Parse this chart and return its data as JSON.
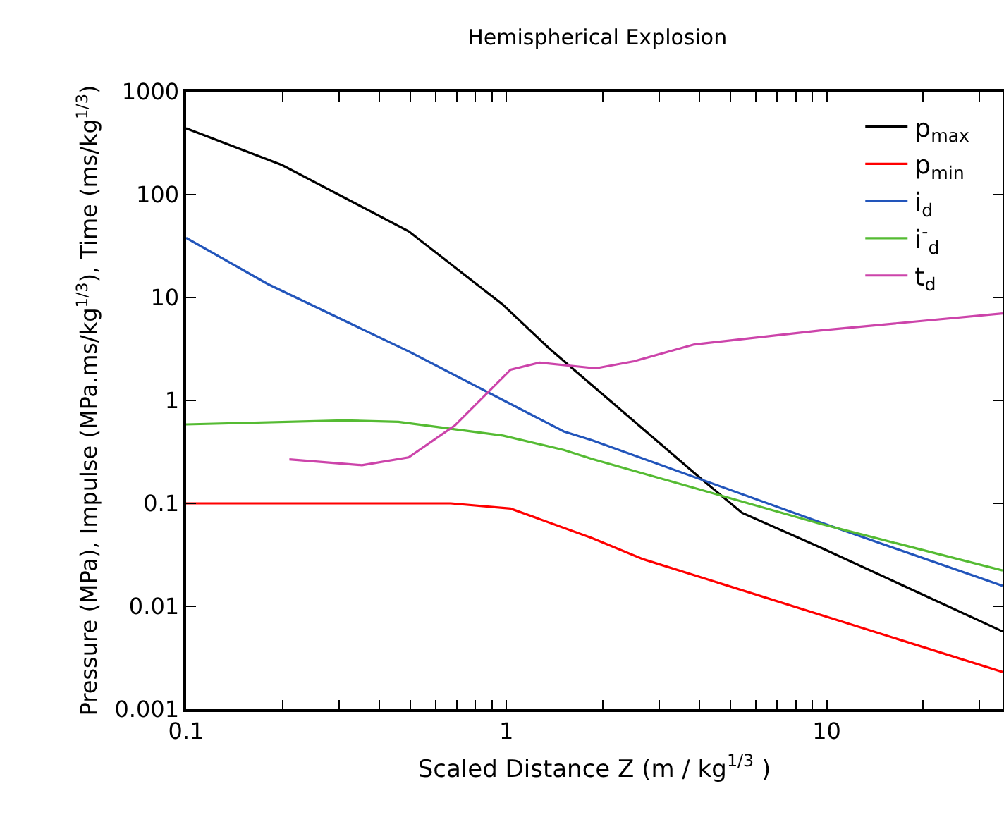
{
  "chart_data": {
    "type": "line",
    "title": "Hemispherical Explosion",
    "xlabel": "Scaled Distance Z (m / kg$^{1/3}$ )",
    "ylabel": "Pressure (MPa), Impulse (MPa.ms/kg$^{1/3}$), Time (ms/kg$^{1/3}$)",
    "log": "xy",
    "grid": false,
    "legend": "top right",
    "marker": "none",
    "line_style": "solid",
    "xlim": [
      0.1,
      35.4
    ],
    "ylim": [
      0.001,
      1000
    ],
    "xticks": [
      0.1,
      {
        "value": 0.2,
        "label": null
      },
      {
        "value": 0.3,
        "label": null
      },
      {
        "value": 0.4,
        "label": null
      },
      {
        "value": 0.5,
        "label": null
      },
      {
        "value": 0.6,
        "label": null
      },
      {
        "value": 0.7,
        "label": null
      },
      {
        "value": 0.8,
        "label": null
      },
      {
        "value": 0.9,
        "label": null
      },
      1,
      {
        "value": 2,
        "label": null
      },
      {
        "value": 3,
        "label": null
      },
      {
        "value": 4,
        "label": null
      },
      {
        "value": 5,
        "label": null
      },
      {
        "value": 6,
        "label": null
      },
      {
        "value": 7,
        "label": null
      },
      {
        "value": 8,
        "label": null
      },
      {
        "value": 9,
        "label": null
      },
      10,
      {
        "value": 20,
        "label": null
      },
      {
        "value": 30,
        "label": null
      }
    ],
    "yticks": [
      0.001,
      0.01,
      0.1,
      1,
      10,
      100,
      1000
    ],
    "series": [
      {
        "name": "p$_{max}$",
        "color": "#000000",
        "x": [
          0.1,
          0.199,
          0.495,
          0.975,
          1.36,
          1.51,
          4.02,
          5.44,
          9.6,
          35.4
        ],
        "values": [
          441,
          194,
          44,
          8.5,
          3.2,
          2.42,
          0.177,
          0.081,
          0.037,
          0.0057
        ]
      },
      {
        "name": "p$_{min}$",
        "color": "#ff0000",
        "x": [
          0.1,
          0.67,
          1.03,
          1.85,
          2.68,
          35.4
        ],
        "values": [
          0.1,
          0.1,
          0.089,
          0.046,
          0.0286,
          0.0023
        ]
      },
      {
        "name": "i$_{d}$",
        "color": "#2255bb",
        "x": [
          0.1,
          0.18,
          0.495,
          1.27,
          1.51,
          1.85,
          9.6,
          35.4
        ],
        "values": [
          38,
          13.5,
          3.0,
          0.66,
          0.5,
          0.41,
          0.065,
          0.0158
        ]
      },
      {
        "name": "i$^{-}$$_{d}$",
        "color": "#55bb33",
        "x": [
          0.1,
          0.31,
          0.46,
          0.975,
          1.51,
          1.85,
          9.6,
          35.4
        ],
        "values": [
          0.585,
          0.64,
          0.62,
          0.455,
          0.33,
          0.27,
          0.063,
          0.0223
        ]
      },
      {
        "name": "t$_{d}$",
        "color": "#cc44aa",
        "x": [
          0.21,
          0.354,
          0.495,
          0.69,
          1.03,
          1.27,
          1.9,
          2.5,
          3.86,
          9.6,
          35.4
        ],
        "values": [
          0.267,
          0.235,
          0.28,
          0.57,
          1.99,
          2.33,
          2.05,
          2.4,
          3.5,
          4.8,
          7.0
        ]
      }
    ]
  }
}
